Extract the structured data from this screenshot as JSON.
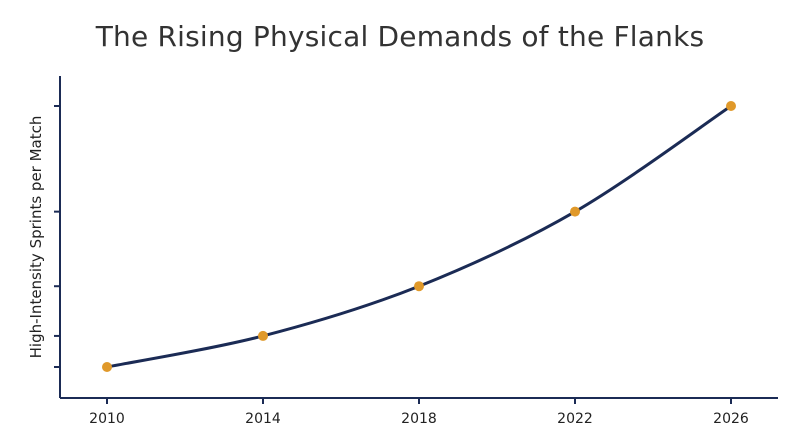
{
  "chart_data": {
    "type": "line",
    "title": "The Rising Physical Demands of the Flanks",
    "xlabel": "",
    "ylabel": "High-Intensity Sprints per Match",
    "x": [
      2010,
      2014,
      2018,
      2022,
      2026
    ],
    "x_ticks": [
      "2010",
      "2014",
      "2018",
      "2022",
      "2026"
    ],
    "y_ticks_labeled": false,
    "y": [
      1.0,
      1.5,
      2.3,
      3.5,
      5.2
    ],
    "xlim": [
      2010,
      2026
    ],
    "ylim": [
      0.5,
      5.7
    ],
    "smooth": true,
    "grid": false,
    "colors": {
      "line": "#1b2b55",
      "marker": "#e0992a",
      "axis": "#1b2b55"
    }
  }
}
